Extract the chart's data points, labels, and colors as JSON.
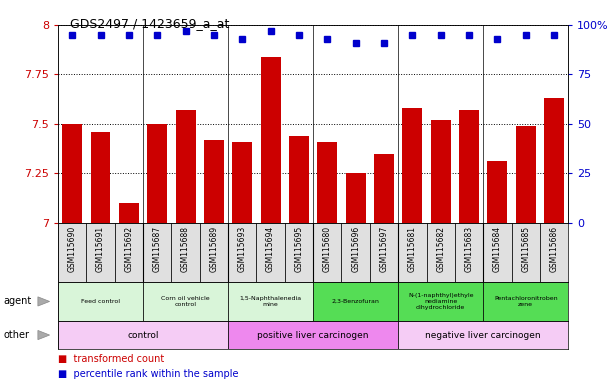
{
  "title": "GDS2497 / 1423659_a_at",
  "samples": [
    "GSM115690",
    "GSM115691",
    "GSM115692",
    "GSM115687",
    "GSM115688",
    "GSM115689",
    "GSM115693",
    "GSM115694",
    "GSM115695",
    "GSM115680",
    "GSM115696",
    "GSM115697",
    "GSM115681",
    "GSM115682",
    "GSM115683",
    "GSM115684",
    "GSM115685",
    "GSM115686"
  ],
  "values": [
    7.5,
    7.46,
    7.1,
    7.5,
    7.57,
    7.42,
    7.41,
    7.84,
    7.44,
    7.41,
    7.25,
    7.35,
    7.58,
    7.52,
    7.57,
    7.31,
    7.49,
    7.63
  ],
  "percentiles": [
    95,
    95,
    95,
    95,
    97,
    95,
    93,
    97,
    95,
    93,
    91,
    91,
    95,
    95,
    95,
    93,
    95,
    95
  ],
  "bar_color": "#cc0000",
  "dot_color": "#0000cc",
  "ylim": [
    7.0,
    8.0
  ],
  "y2lim": [
    0,
    100
  ],
  "yticks": [
    7.0,
    7.25,
    7.5,
    7.75,
    8.0
  ],
  "y2ticks": [
    0,
    25,
    50,
    75,
    100
  ],
  "ytick_labels": [
    "7",
    "7.25",
    "7.5",
    "7.75",
    "8"
  ],
  "y2tick_labels": [
    "0",
    "25",
    "50",
    "75",
    "100%"
  ],
  "group_boundaries": [
    3,
    6,
    9,
    12,
    15
  ],
  "agent_groups": [
    {
      "label": "Feed control",
      "start": 0,
      "end": 3,
      "color": "#d9f5d9"
    },
    {
      "label": "Corn oil vehicle\ncontrol",
      "start": 3,
      "end": 6,
      "color": "#d9f5d9"
    },
    {
      "label": "1,5-Naphthalenedia\nmine",
      "start": 6,
      "end": 9,
      "color": "#d9f5d9"
    },
    {
      "label": "2,3-Benzofuran",
      "start": 9,
      "end": 12,
      "color": "#55dd55"
    },
    {
      "label": "N-(1-naphthyl)ethyle\nnediamine\ndihydrochloride",
      "start": 12,
      "end": 15,
      "color": "#55dd55"
    },
    {
      "label": "Pentachloronitroben\nzene",
      "start": 15,
      "end": 18,
      "color": "#55dd55"
    }
  ],
  "other_groups": [
    {
      "label": "control",
      "start": 0,
      "end": 6,
      "color": "#f5ccf5"
    },
    {
      "label": "positive liver carcinogen",
      "start": 6,
      "end": 12,
      "color": "#ee88ee"
    },
    {
      "label": "negative liver carcinogen",
      "start": 12,
      "end": 18,
      "color": "#f5ccf5"
    }
  ],
  "legend_red": "transformed count",
  "legend_blue": "percentile rank within the sample",
  "xtick_bg": "#e0e0e0",
  "left_label_color": "#888888"
}
